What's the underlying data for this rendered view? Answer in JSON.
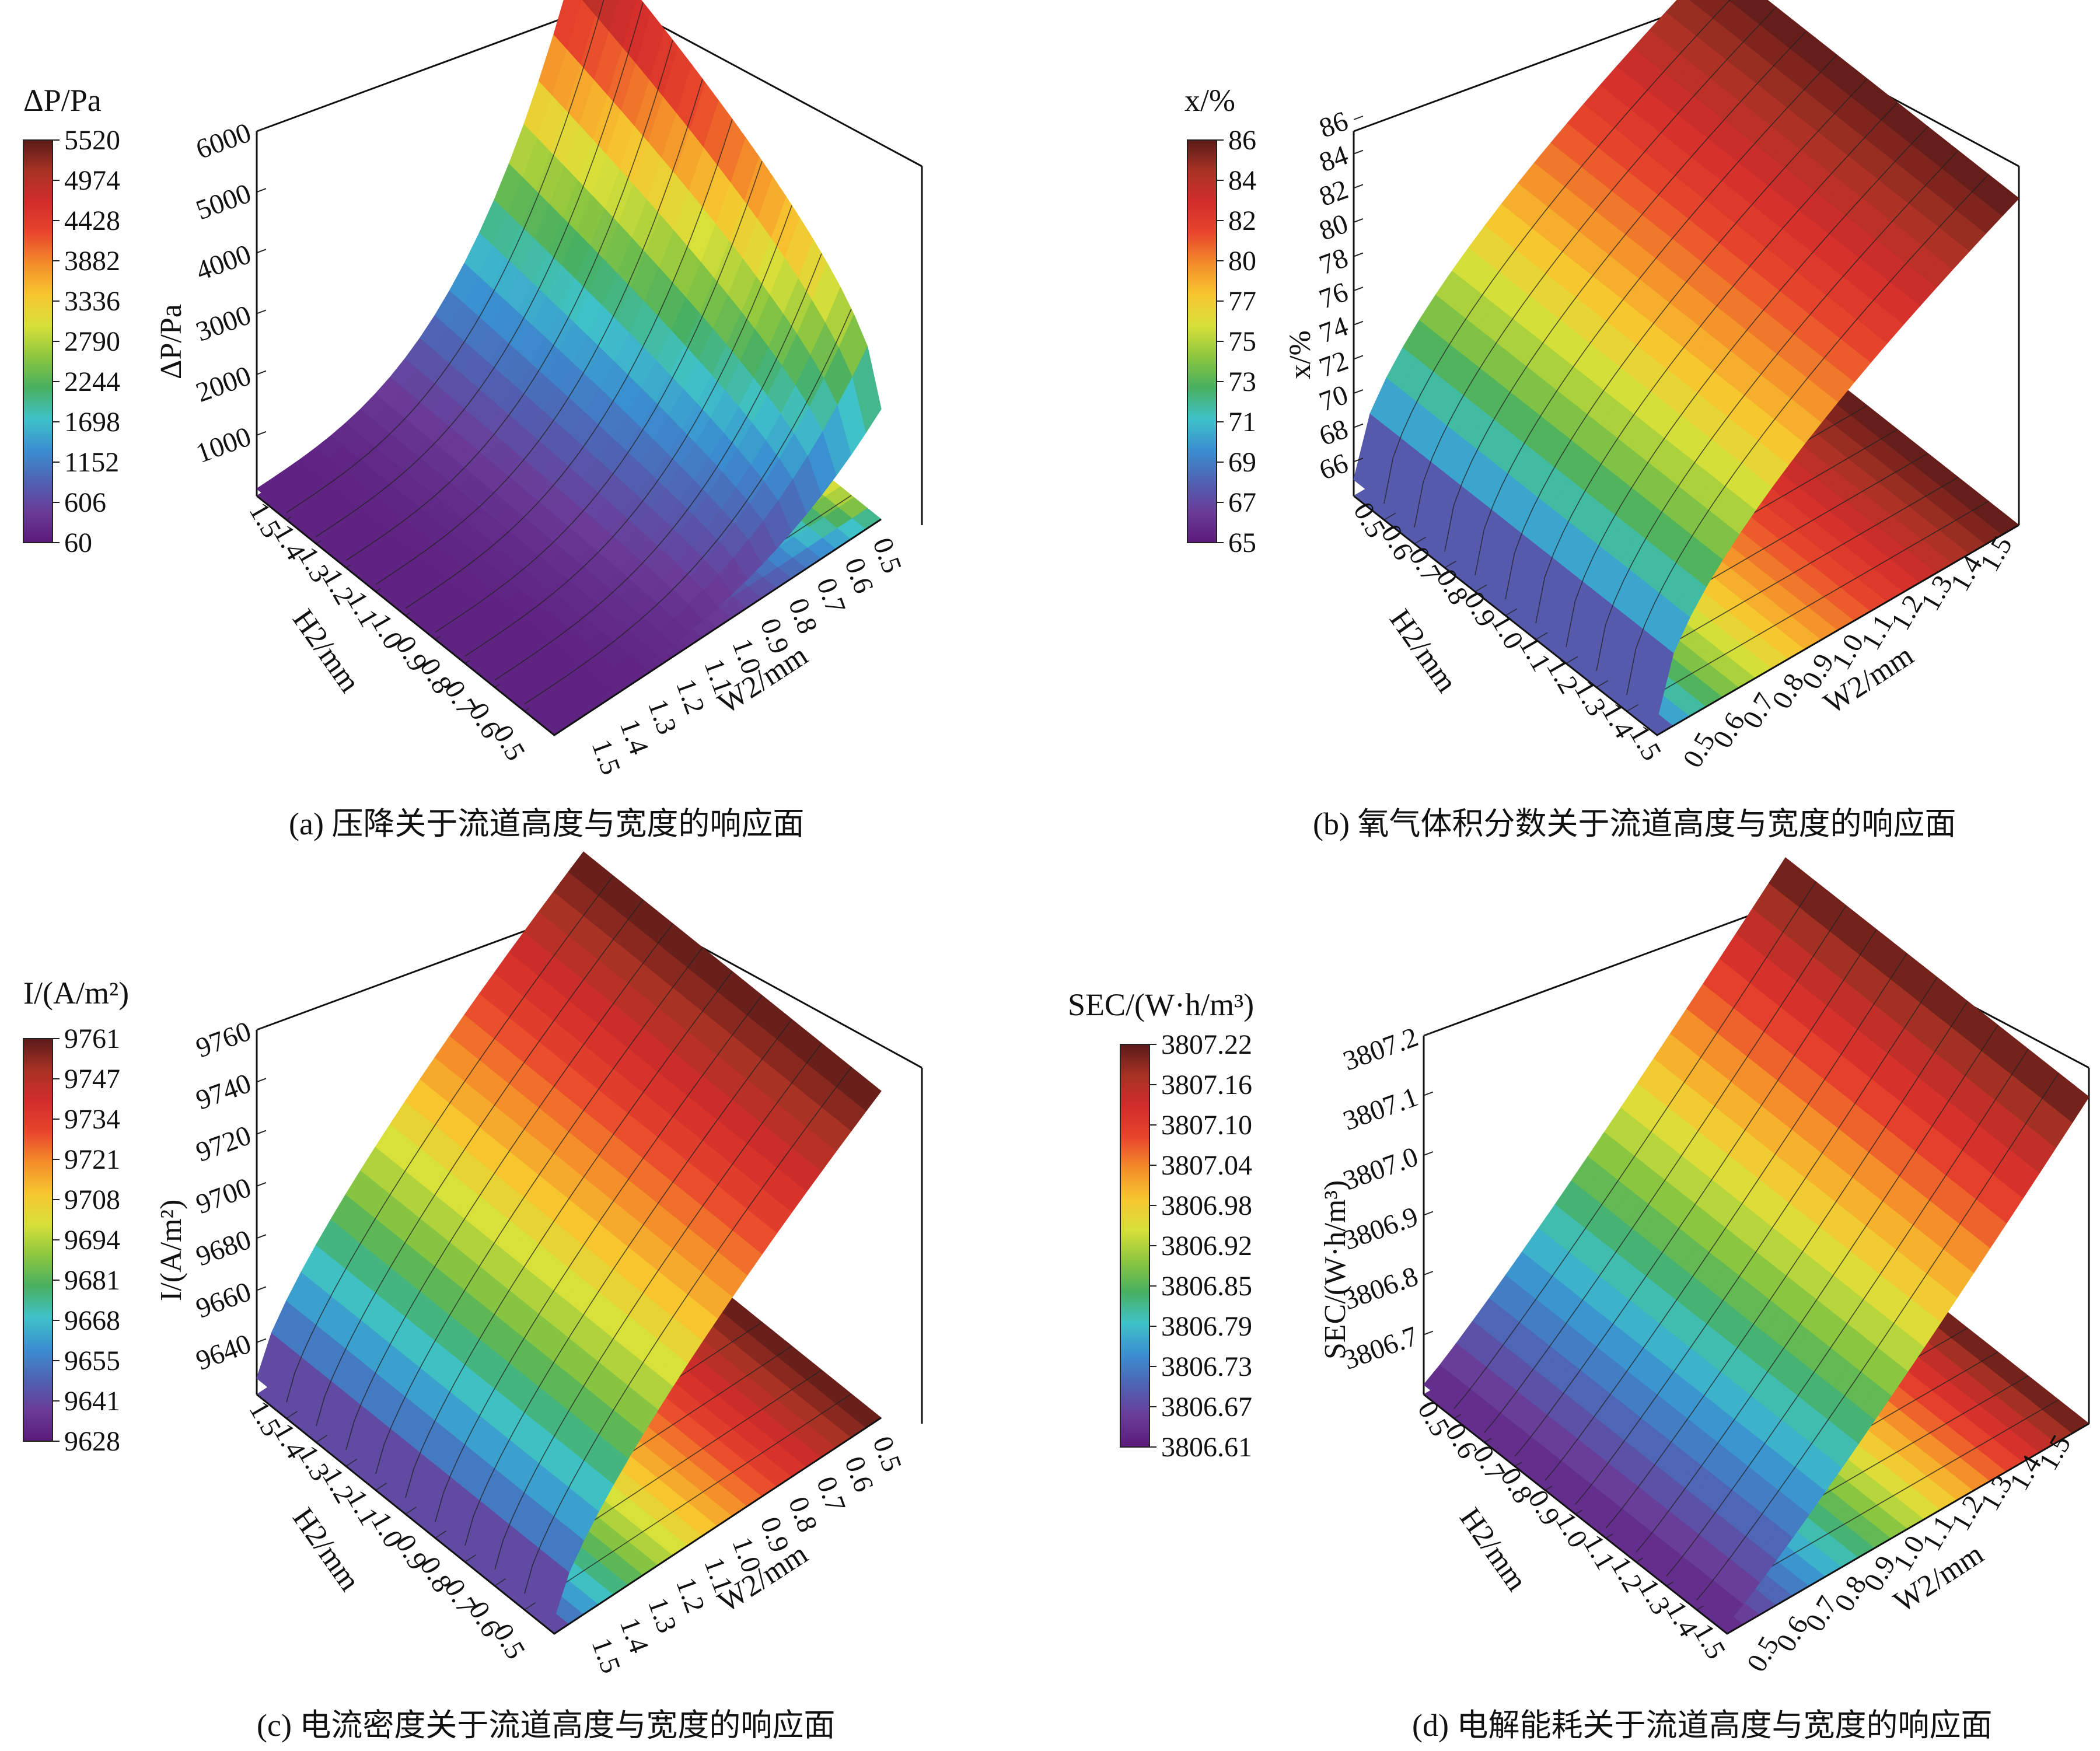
{
  "colormap": [
    "#5b1a7a",
    "#6a3c98",
    "#4f63b3",
    "#3a8fd0",
    "#3fc2c9",
    "#48b061",
    "#8cc63f",
    "#d8e03a",
    "#f7c62f",
    "#f48d2a",
    "#e8452c",
    "#d22d2b",
    "#a83224",
    "#5a1a18"
  ],
  "panels": [
    {
      "caption": "(a) 压降关于流道高度与宽度的响应面",
      "legend": {
        "title": "ΔP/Pa",
        "ticks": [
          "5520",
          "4974",
          "4428",
          "3882",
          "3336",
          "2790",
          "2244",
          "1698",
          "1152",
          "606",
          "60"
        ]
      },
      "z_label": "ΔP/Pa",
      "z_ticks": [
        "1000",
        "2000",
        "3000",
        "4000",
        "5000",
        "6000"
      ],
      "h_label": "H2/mm",
      "w_label": "W2/mm",
      "h_ticks": [
        "0.5",
        "0.6",
        "0.7",
        "0.8",
        "0.9",
        "1.0",
        "1.1",
        "1.2",
        "1.3",
        "1.4",
        "1.5"
      ],
      "w_ticks": [
        "0.5",
        "0.6",
        "0.7",
        "0.8",
        "0.9",
        "1.0",
        "1.1",
        "1.2",
        "1.3",
        "1.4",
        "1.5"
      ]
    },
    {
      "caption": "(b) 氧气体积分数关于流道高度与宽度的响应面",
      "legend": {
        "title": "x/%",
        "ticks": [
          "86",
          "84",
          "82",
          "80",
          "77",
          "75",
          "73",
          "71",
          "69",
          "67",
          "65"
        ]
      },
      "z_label": "x/%",
      "z_ticks": [
        "66",
        "68",
        "70",
        "72",
        "74",
        "76",
        "78",
        "80",
        "82",
        "84",
        "86"
      ],
      "h_label": "H2/mm",
      "w_label": "W2/mm",
      "h_ticks": [
        "0.5",
        "0.6",
        "0.7",
        "0.8",
        "0.9",
        "1.0",
        "1.1",
        "1.2",
        "1.3",
        "1.4",
        "1.5"
      ],
      "w_ticks": [
        "0.5",
        "0.6",
        "0.7",
        "0.8",
        "0.9",
        "1.0",
        "1.1",
        "1.2",
        "1.3",
        "1.4",
        "1.5"
      ]
    },
    {
      "caption": "(c) 电流密度关于流道高度与宽度的响应面",
      "legend": {
        "title": "I/(A/m²)",
        "ticks": [
          "9761",
          "9747",
          "9734",
          "9721",
          "9708",
          "9694",
          "9681",
          "9668",
          "9655",
          "9641",
          "9628"
        ]
      },
      "z_label": "I/(A/m²)",
      "z_ticks": [
        "9640",
        "9660",
        "9680",
        "9700",
        "9720",
        "9740",
        "9760"
      ],
      "h_label": "H2/mm",
      "w_label": "W2/mm",
      "h_ticks": [
        "0.5",
        "0.6",
        "0.7",
        "0.8",
        "0.9",
        "1.0",
        "1.1",
        "1.2",
        "1.3",
        "1.4",
        "1.5"
      ],
      "w_ticks": [
        "0.5",
        "0.6",
        "0.7",
        "0.8",
        "0.9",
        "1.0",
        "1.1",
        "1.2",
        "1.3",
        "1.4",
        "1.5"
      ]
    },
    {
      "caption": "(d) 电解能耗关于流道高度与宽度的响应面",
      "legend": {
        "title": "SEC/(W·h/m³)",
        "ticks": [
          "3807.22",
          "3807.16",
          "3807.10",
          "3807.04",
          "3806.98",
          "3806.92",
          "3806.85",
          "3806.79",
          "3806.73",
          "3806.67",
          "3806.61"
        ]
      },
      "z_label": "SEC/(W·h/m³)",
      "z_ticks": [
        "3806.7",
        "3806.8",
        "3806.9",
        "3807.0",
        "3807.1",
        "3807.2"
      ],
      "h_label": "H2/mm",
      "w_label": "W2/mm",
      "h_ticks": [
        "0.5",
        "0.6",
        "0.7",
        "0.8",
        "0.9",
        "1.0",
        "1.1",
        "1.2",
        "1.3",
        "1.4",
        "1.5"
      ],
      "w_ticks": [
        "0.5",
        "0.6",
        "0.7",
        "0.8",
        "0.9",
        "1.0",
        "1.1",
        "1.2",
        "1.3",
        "1.4",
        "1.5"
      ]
    }
  ],
  "chart_data": [
    {
      "type": "surface",
      "title": "(a) 压降关于流道高度与宽度的响应面",
      "x_name": "H2/mm",
      "y_name": "W2/mm",
      "z_name": "ΔP/Pa",
      "x_range": [
        0.5,
        1.5
      ],
      "y_range": [
        0.5,
        1.5
      ],
      "zlim": [
        0,
        6000
      ],
      "z_range": [
        60,
        5520
      ],
      "surface": "minimum ~60 Pa for large H2 and W2; rises steeply as both H2 and W2 approach 0.5, reaching ~5520 Pa at H2=0.5, W2=0.5"
    },
    {
      "type": "surface",
      "title": "(b) 氧气体积分数关于流道高度与宽度的响应面",
      "x_name": "H2/mm",
      "y_name": "W2/mm",
      "z_name": "x/%",
      "x_range": [
        0.5,
        1.5
      ],
      "y_range": [
        0.5,
        1.5
      ],
      "zlim": [
        65,
        86
      ],
      "z_range": [
        65,
        86
      ],
      "surface": "rises from ~65 % at small W2 to ~86 % at large W2; nearly flat in H2"
    },
    {
      "type": "surface",
      "title": "(c) 电流密度关于流道高度与宽度的响应面",
      "x_name": "H2/mm",
      "y_name": "W2/mm",
      "z_name": "I/(A/m²)",
      "x_range": [
        0.5,
        1.5
      ],
      "y_range": [
        0.5,
        1.5
      ],
      "zlim": [
        9628,
        9761
      ],
      "z_range": [
        9628,
        9761
      ],
      "surface": "lowest ~9628 at H2=1.5, W2=1.5; increases as W2 decreases, peaking ~9761 near W2=0.5"
    },
    {
      "type": "surface",
      "title": "(d) 电解能耗关于流道高度与宽度的响应面",
      "x_name": "H2/mm",
      "y_name": "W2/mm",
      "z_name": "SEC/(W·h/m³)",
      "x_range": [
        0.5,
        1.5
      ],
      "y_range": [
        0.5,
        1.5
      ],
      "zlim": [
        3806.61,
        3807.22
      ],
      "z_range": [
        3806.61,
        3807.22
      ],
      "surface": "lowest ~3806.61 at small W2; increases with W2 to ~3807.22 at W2=1.5"
    }
  ]
}
